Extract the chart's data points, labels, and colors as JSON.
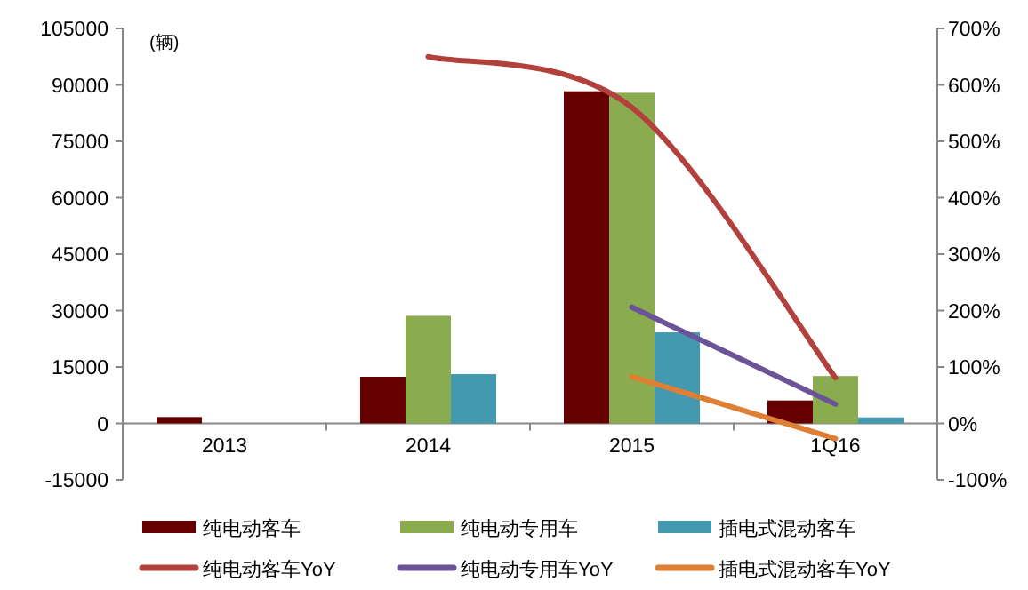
{
  "chart_data": {
    "type": "bar",
    "ylabel": "(辆)",
    "categories": [
      "2013",
      "2014",
      "2015",
      "1Q16"
    ],
    "series": [
      {
        "name": "纯电动客车",
        "color": "#660000",
        "values": [
          1700,
          12400,
          88300,
          6100
        ]
      },
      {
        "name": "纯电动专用车",
        "color": "#8bab4f",
        "values": [
          null,
          28600,
          87900,
          12600
        ]
      },
      {
        "name": "插电式混动客车",
        "color": "#4299b0",
        "values": [
          null,
          13100,
          24200,
          1600
        ]
      },
      {
        "name": "纯电动客车YoY",
        "type": "line",
        "axis": "y2",
        "color": "#b2413d",
        "values": [
          null,
          650,
          560,
          81
        ]
      },
      {
        "name": "纯电动专用车YoY",
        "type": "line",
        "axis": "y2",
        "color": "#6a5396",
        "values": [
          null,
          null,
          206,
          34
        ]
      },
      {
        "name": "插电式混动客车YoY",
        "type": "line",
        "axis": "y2",
        "color": "#de7f34",
        "values": [
          null,
          null,
          83,
          -27
        ]
      }
    ],
    "ylim": [
      -15000,
      105000
    ],
    "yticks": [
      -15000,
      0,
      15000,
      30000,
      45000,
      60000,
      75000,
      90000,
      105000
    ],
    "y2lim": [
      -100,
      700
    ],
    "y2ticks": [
      {
        "value": -100,
        "label": "-100%"
      },
      {
        "value": 0,
        "label": "0%"
      },
      {
        "value": 100,
        "label": "100%"
      },
      {
        "value": 200,
        "label": "200%"
      },
      {
        "value": 300,
        "label": "300%"
      },
      {
        "value": 400,
        "label": "400%"
      },
      {
        "value": 500,
        "label": "500%"
      },
      {
        "value": 600,
        "label": "600%"
      },
      {
        "value": 700,
        "label": "700%"
      }
    ],
    "grid": false,
    "legend": "bottom"
  }
}
